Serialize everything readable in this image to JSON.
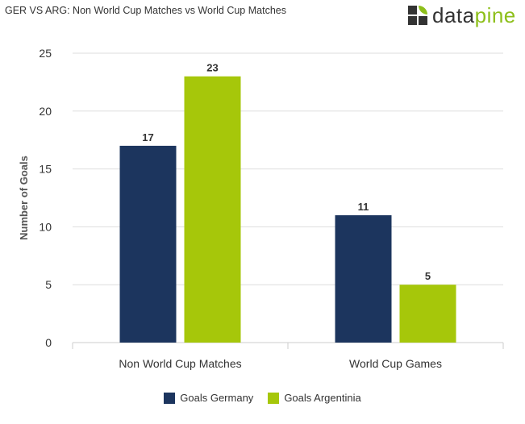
{
  "title": "GER VS ARG: Non World Cup Matches vs World Cup Matches",
  "logo": {
    "text_main": "data",
    "text_accent": "pine"
  },
  "colors": {
    "germany": "#1c355e",
    "argentina": "#a6c70a",
    "grid": "#dddddd",
    "text": "#333333",
    "label": "#555555"
  },
  "chart_data": {
    "type": "bar",
    "title": "GER VS ARG: Non World Cup Matches vs World Cup Matches",
    "categories": [
      "Non World Cup Matches",
      "World Cup Games"
    ],
    "series": [
      {
        "name": "Goals Germany",
        "values": [
          17,
          11
        ]
      },
      {
        "name": "Goals Argentinia",
        "values": [
          23,
          5
        ]
      }
    ],
    "xlabel": "",
    "ylabel": "Number of Goals",
    "ylim": [
      0,
      25
    ],
    "yticks": [
      0,
      5,
      10,
      15,
      20,
      25
    ],
    "grid": true,
    "legend": "bottom"
  }
}
